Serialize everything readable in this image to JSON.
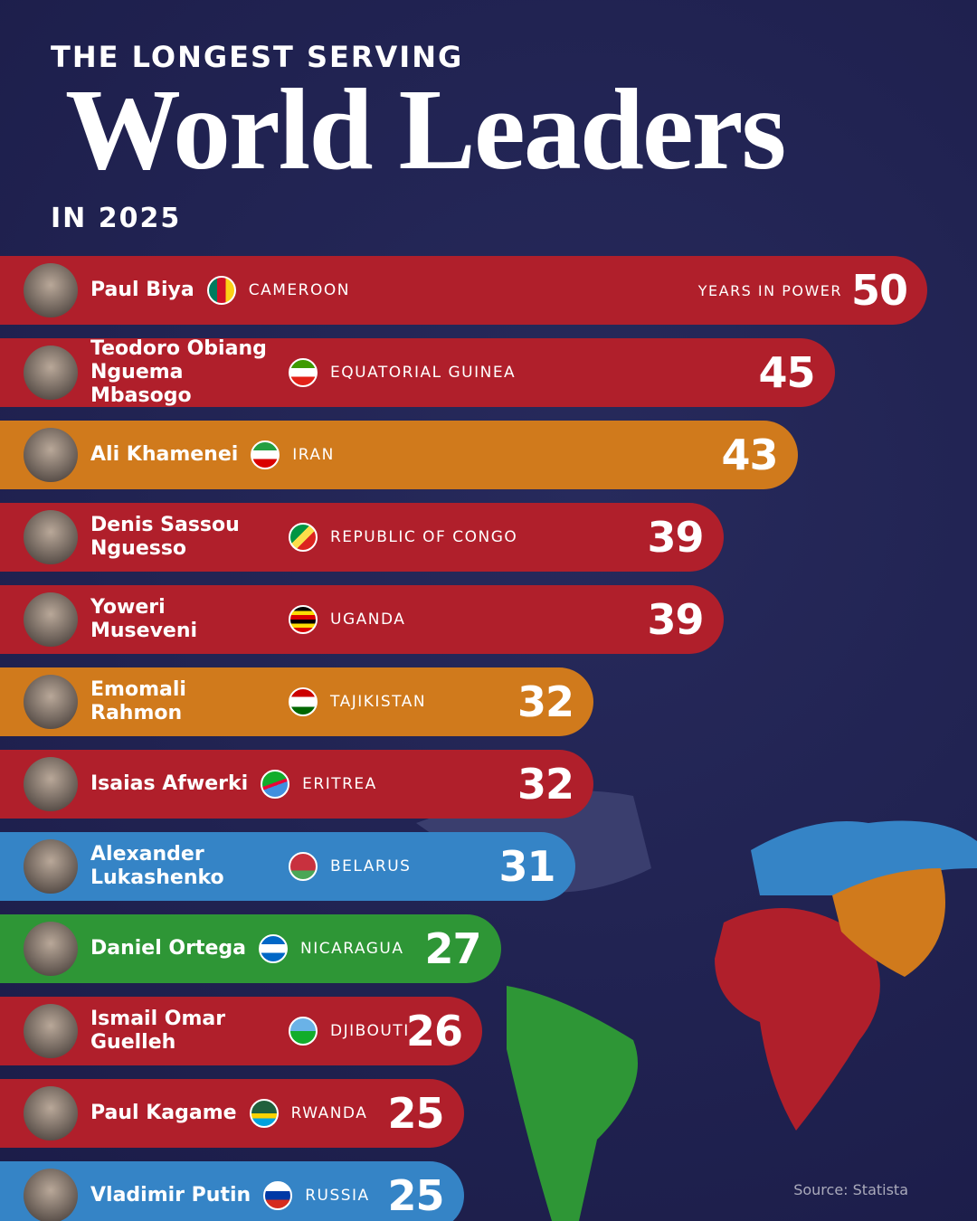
{
  "chart_data": {
    "type": "bar",
    "orientation": "horizontal",
    "title_top": "THE LONGEST SERVING",
    "title": "World Leaders",
    "subtitle": "IN 2025",
    "value_label": "YEARS IN POWER",
    "source": "Source: Statista",
    "categories": [
      "Paul Biya",
      "Teodoro Obiang Nguema Mbasogo",
      "Ali Khamenei",
      "Denis Sassou Nguesso",
      "Yoweri Museveni",
      "Emomali Rahmon",
      "Isaias Afwerki",
      "Alexander Lukashenko",
      "Daniel Ortega",
      "Ismail Omar Guelleh",
      "Paul Kagame",
      "Vladimir Putin"
    ],
    "countries": [
      "CAMEROON",
      "EQUATORIAL GUINEA",
      "IRAN",
      "REPUBLIC OF CONGO",
      "UGANDA",
      "TAJIKISTAN",
      "ERITREA",
      "BELARUS",
      "NICARAGUA",
      "DJIBOUTI",
      "RWANDA",
      "RUSSIA"
    ],
    "values": [
      50,
      45,
      43,
      39,
      39,
      32,
      32,
      31,
      27,
      26,
      25,
      25
    ],
    "colors": [
      "#b01f2b",
      "#b01f2b",
      "#d07a1c",
      "#b01f2b",
      "#b01f2b",
      "#d07a1c",
      "#b01f2b",
      "#3584c6",
      "#2e9636",
      "#b01f2b",
      "#b01f2b",
      "#3584c6"
    ]
  }
}
